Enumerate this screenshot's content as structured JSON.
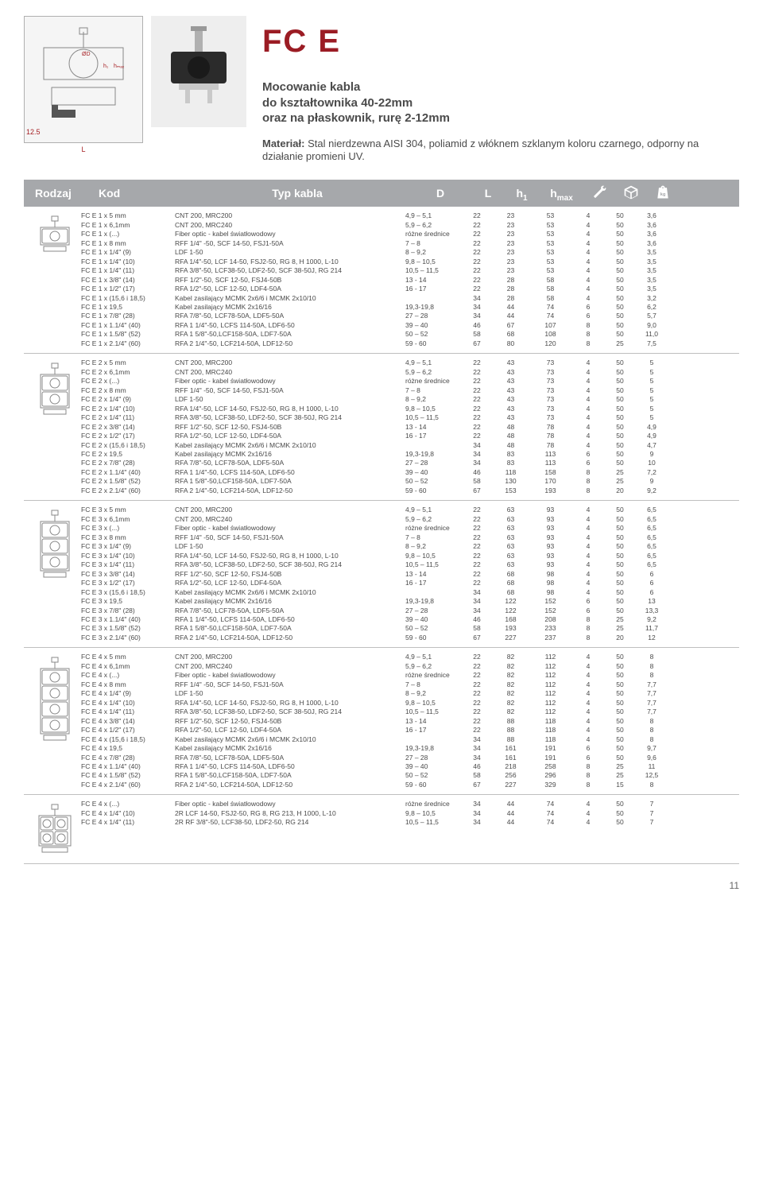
{
  "title": "FC E",
  "subtitle": "Mocowanie kabla\ndo kształtownika 40-22mm\noraz na płaskownik, rurę 2-12mm",
  "material_label": "Materiał:",
  "material_text": "Stal nierdzewna AISI 304, poliamid z włóknem szklanym koloru czarnego, odporny na działanie promieni UV.",
  "tech_dim": "12.5",
  "tech_L": "L",
  "headers": {
    "rodzaj": "Rodzaj",
    "kod": "Kod",
    "typ": "Typ kabla",
    "d": "D",
    "l": "L",
    "h1": "h",
    "h1sub": "1",
    "hmax": "h",
    "hmaxsub": "max"
  },
  "sections": [
    {
      "holes": 1,
      "rows": [
        [
          "FC E 1 x 5 mm",
          "CNT 200, MRC200",
          "4,9 – 5,1",
          "22",
          "23",
          "53",
          "4",
          "50",
          "3,6"
        ],
        [
          "FC E 1 x 6,1mm",
          "CNT 200, MRC240",
          "5,9 – 6,2",
          "22",
          "23",
          "53",
          "4",
          "50",
          "3,6"
        ],
        [
          "FC E 1 x (...)",
          "Fiber optic - kabel światłowodowy",
          "różne średnice",
          "22",
          "23",
          "53",
          "4",
          "50",
          "3,6"
        ],
        [
          "FC E 1 x 8 mm",
          "RFF 1/4\" -50, SCF 14-50, FSJ1-50A",
          "7 – 8",
          "22",
          "23",
          "53",
          "4",
          "50",
          "3,6"
        ],
        [
          "FC E 1 x 1/4\" (9)",
          "LDF 1-50",
          "8 – 9,2",
          "22",
          "23",
          "53",
          "4",
          "50",
          "3,5"
        ],
        [
          "FC E 1 x 1/4\" (10)",
          "RFA 1/4\"-50, LCF 14-50, FSJ2-50, RG 8, H 1000, L-10",
          "9,8 – 10,5",
          "22",
          "23",
          "53",
          "4",
          "50",
          "3,5"
        ],
        [
          "FC E 1 x 1/4\" (11)",
          "RFA 3/8\"-50, LCF38-50, LDF2-50, SCF 38-50J, RG 214",
          "10,5 – 11,5",
          "22",
          "23",
          "53",
          "4",
          "50",
          "3,5"
        ],
        [
          "FC E 1 x 3/8\" (14)",
          "RFF 1/2\"-50, SCF 12-50, FSJ4-50B",
          "13 - 14",
          "22",
          "28",
          "58",
          "4",
          "50",
          "3,5"
        ],
        [
          "FC E 1 x 1/2\" (17)",
          "RFA 1/2\"-50, LCF 12-50, LDF4-50A",
          "16 - 17",
          "22",
          "28",
          "58",
          "4",
          "50",
          "3,5"
        ],
        [
          "FC E 1 x (15,6 i 18,5)",
          "Kabel zasilający MCMK 2x6/6 i MCMK 2x10/10",
          "",
          "34",
          "28",
          "58",
          "4",
          "50",
          "3,2"
        ],
        [
          "FC E 1 x 19,5",
          "Kabel zasilający MCMK 2x16/16",
          "19,3-19,8",
          "34",
          "44",
          "74",
          "6",
          "50",
          "6,2"
        ],
        [
          "FC E 1 x 7/8\" (28)",
          "RFA 7/8\"-50, LCF78-50A, LDF5-50A",
          "27 – 28",
          "34",
          "44",
          "74",
          "6",
          "50",
          "5,7"
        ],
        [
          "FC E 1 x 1.1/4\" (40)",
          "RFA 1 1/4\"-50, LCFS 114-50A, LDF6-50",
          "39 – 40",
          "46",
          "67",
          "107",
          "8",
          "50",
          "9,0"
        ],
        [
          "FC E 1 x 1.5/8\" (52)",
          "RFA 1 5/8\"-50,LCF158-50A, LDF7-50A",
          "50 – 52",
          "58",
          "68",
          "108",
          "8",
          "50",
          "11,0"
        ],
        [
          "FC E 1 x 2.1/4\" (60)",
          "RFA 2 1/4\"-50, LCF214-50A, LDF12-50",
          "59 - 60",
          "67",
          "80",
          "120",
          "8",
          "25",
          "7,5"
        ]
      ]
    },
    {
      "holes": 2,
      "rows": [
        [
          "FC E 2 x 5 mm",
          "CNT 200, MRC200",
          "4,9 – 5,1",
          "22",
          "43",
          "73",
          "4",
          "50",
          "5"
        ],
        [
          "FC E 2 x 6,1mm",
          "CNT 200, MRC240",
          "5,9 – 6,2",
          "22",
          "43",
          "73",
          "4",
          "50",
          "5"
        ],
        [
          "FC E 2 x (...)",
          "Fiber optic - kabel światłowodowy",
          "różne średnice",
          "22",
          "43",
          "73",
          "4",
          "50",
          "5"
        ],
        [
          "FC E 2 x 8 mm",
          "RFF 1/4\" -50, SCF 14-50, FSJ1-50A",
          "7 – 8",
          "22",
          "43",
          "73",
          "4",
          "50",
          "5"
        ],
        [
          "FC E 2 x 1/4\" (9)",
          "LDF 1-50",
          "8 – 9,2",
          "22",
          "43",
          "73",
          "4",
          "50",
          "5"
        ],
        [
          "FC E 2 x 1/4\" (10)",
          "RFA 1/4\"-50, LCF 14-50, FSJ2-50, RG 8, H 1000, L-10",
          "9,8 – 10,5",
          "22",
          "43",
          "73",
          "4",
          "50",
          "5"
        ],
        [
          "FC E 2 x 1/4\" (11)",
          "RFA 3/8\"-50, LCF38-50, LDF2-50, SCF 38-50J, RG 214",
          "10,5 – 11,5",
          "22",
          "43",
          "73",
          "4",
          "50",
          "5"
        ],
        [
          "FC E 2 x 3/8\" (14)",
          "RFF 1/2\"-50, SCF 12-50, FSJ4-50B",
          "13 - 14",
          "22",
          "48",
          "78",
          "4",
          "50",
          "4,9"
        ],
        [
          "FC E 2 x 1/2\" (17)",
          "RFA 1/2\"-50, LCF 12-50, LDF4-50A",
          "16 - 17",
          "22",
          "48",
          "78",
          "4",
          "50",
          "4,9"
        ],
        [
          "FC E 2 x (15,6 i 18,5)",
          "Kabel zasilający MCMK 2x6/6 i MCMK 2x10/10",
          "",
          "34",
          "48",
          "78",
          "4",
          "50",
          "4,7"
        ],
        [
          "FC E 2 x 19,5",
          "Kabel zasilający MCMK 2x16/16",
          "19,3-19,8",
          "34",
          "83",
          "113",
          "6",
          "50",
          "9"
        ],
        [
          "FC E 2 x 7/8\" (28)",
          "RFA 7/8\"-50, LCF78-50A, LDF5-50A",
          "27 – 28",
          "34",
          "83",
          "113",
          "6",
          "50",
          "10"
        ],
        [
          "FC E 2 x 1.1/4\" (40)",
          "RFA 1 1/4\"-50, LCFS 114-50A, LDF6-50",
          "39 – 40",
          "46",
          "118",
          "158",
          "8",
          "25",
          "7,2"
        ],
        [
          "FC E 2 x 1.5/8\" (52)",
          "RFA 1 5/8\"-50,LCF158-50A, LDF7-50A",
          "50 – 52",
          "58",
          "130",
          "170",
          "8",
          "25",
          "9"
        ],
        [
          "FC E 2 x 2.1/4\" (60)",
          "RFA 2 1/4\"-50, LCF214-50A, LDF12-50",
          "59 - 60",
          "67",
          "153",
          "193",
          "8",
          "20",
          "9,2"
        ]
      ]
    },
    {
      "holes": 3,
      "rows": [
        [
          "FC E 3 x 5 mm",
          "CNT 200, MRC200",
          "4,9 – 5,1",
          "22",
          "63",
          "93",
          "4",
          "50",
          "6,5"
        ],
        [
          "FC E 3 x 6,1mm",
          "CNT 200, MRC240",
          "5,9 – 6,2",
          "22",
          "63",
          "93",
          "4",
          "50",
          "6,5"
        ],
        [
          "FC E 3 x (...)",
          "Fiber optic - kabel światłowodowy",
          "różne średnice",
          "22",
          "63",
          "93",
          "4",
          "50",
          "6,5"
        ],
        [
          "FC E 3 x 8 mm",
          "RFF 1/4\" -50, SCF 14-50, FSJ1-50A",
          "7 – 8",
          "22",
          "63",
          "93",
          "4",
          "50",
          "6,5"
        ],
        [
          "FC E 3 x 1/4\" (9)",
          "LDF 1-50",
          "8 – 9,2",
          "22",
          "63",
          "93",
          "4",
          "50",
          "6,5"
        ],
        [
          "FC E 3 x 1/4\" (10)",
          "RFA 1/4\"-50, LCF 14-50, FSJ2-50, RG 8, H 1000, L-10",
          "9,8 – 10,5",
          "22",
          "63",
          "93",
          "4",
          "50",
          "6,5"
        ],
        [
          "FC E 3 x 1/4\" (11)",
          "RFA 3/8\"-50, LCF38-50, LDF2-50, SCF 38-50J, RG 214",
          "10,5 – 11,5",
          "22",
          "63",
          "93",
          "4",
          "50",
          "6,5"
        ],
        [
          "FC E 3 x 3/8\" (14)",
          "RFF 1/2\"-50, SCF 12-50, FSJ4-50B",
          "13 - 14",
          "22",
          "68",
          "98",
          "4",
          "50",
          "6"
        ],
        [
          "FC E 3 x 1/2\" (17)",
          "RFA 1/2\"-50, LCF 12-50, LDF4-50A",
          "16 - 17",
          "22",
          "68",
          "98",
          "4",
          "50",
          "6"
        ],
        [
          "FC E 3 x (15,6 i 18,5)",
          "Kabel zasilający MCMK 2x6/6 i MCMK 2x10/10",
          "",
          "34",
          "68",
          "98",
          "4",
          "50",
          "6"
        ],
        [
          "FC E 3 x 19,5",
          "Kabel zasilający MCMK 2x16/16",
          "19,3-19,8",
          "34",
          "122",
          "152",
          "6",
          "50",
          "13"
        ],
        [
          "FC E 3 x 7/8\" (28)",
          "RFA  7/8\"-50, LCF78-50A, LDF5-50A",
          "27 – 28",
          "34",
          "122",
          "152",
          "6",
          "50",
          "13,3"
        ],
        [
          "FC E 3 x 1.1/4\" (40)",
          "RFA 1 1/4\"-50, LCFS 114-50A, LDF6-50",
          "39 – 40",
          "46",
          "168",
          "208",
          "8",
          "25",
          "9,2"
        ],
        [
          "FC E 3 x 1.5/8\" (52)",
          "RFA 1 5/8\"-50,LCF158-50A, LDF7-50A",
          "50 – 52",
          "58",
          "193",
          "233",
          "8",
          "25",
          "11,7"
        ],
        [
          "FC E 3 x 2.1/4\" (60)",
          "RFA 2 1/4\"-50, LCF214-50A, LDF12-50",
          "59 - 60",
          "67",
          "227",
          "237",
          "8",
          "20",
          "12"
        ]
      ]
    },
    {
      "holes": 4,
      "rows": [
        [
          "FC E 4 x 5 mm",
          "CNT 200, MRC200",
          "4,9 – 5,1",
          "22",
          "82",
          "112",
          "4",
          "50",
          "8"
        ],
        [
          "FC E 4 x 6,1mm",
          "CNT 200, MRC240",
          "5,9 – 6,2",
          "22",
          "82",
          "112",
          "4",
          "50",
          "8"
        ],
        [
          "FC E 4 x (...)",
          "Fiber optic - kabel światłowodowy",
          "różne średnice",
          "22",
          "82",
          "112",
          "4",
          "50",
          "8"
        ],
        [
          "FC E 4 x 8 mm",
          "RFF 1/4\" -50, SCF 14-50, FSJ1-50A",
          "7 – 8",
          "22",
          "82",
          "112",
          "4",
          "50",
          "7,7"
        ],
        [
          "FC E 4 x 1/4\" (9)",
          "LDF 1-50",
          "8 – 9,2",
          "22",
          "82",
          "112",
          "4",
          "50",
          "7,7"
        ],
        [
          "FC E 4 x 1/4\" (10)",
          "RFA 1/4\"-50, LCF 14-50, FSJ2-50, RG 8, H 1000, L-10",
          "9,8 – 10,5",
          "22",
          "82",
          "112",
          "4",
          "50",
          "7,7"
        ],
        [
          "FC E 4 x 1/4\" (11)",
          "RFA 3/8\"-50, LCF38-50, LDF2-50, SCF 38-50J, RG 214",
          "10,5 – 11,5",
          "22",
          "82",
          "112",
          "4",
          "50",
          "7,7"
        ],
        [
          "FC E 4 x 3/8\" (14)",
          "RFF 1/2\"-50, SCF 12-50, FSJ4-50B",
          "13 - 14",
          "22",
          "88",
          "118",
          "4",
          "50",
          "8"
        ],
        [
          "FC E 4 x 1/2\" (17)",
          "RFA 1/2\"-50, LCF 12-50, LDF4-50A",
          "16 - 17",
          "22",
          "88",
          "118",
          "4",
          "50",
          "8"
        ],
        [
          "FC E 4 x (15,6 i 18,5)",
          "Kabel zasilający MCMK 2x6/6 i MCMK 2x10/10",
          "",
          "34",
          "88",
          "118",
          "4",
          "50",
          "8"
        ],
        [
          "FC E 4 x 19,5",
          "Kabel zasilający MCMK 2x16/16",
          "19,3-19,8",
          "34",
          "161",
          "191",
          "6",
          "50",
          "9,7"
        ],
        [
          "FC E 4 x 7/8\" (28)",
          "RFA 7/8\"-50, LCF78-50A, LDF5-50A",
          "27 – 28",
          "34",
          "161",
          "191",
          "6",
          "50",
          "9,6"
        ],
        [
          "FC E 4 x 1.1/4\" (40)",
          "RFA 1 1/4\"-50, LCFS 114-50A, LDF6-50",
          "39 – 40",
          "46",
          "218",
          "258",
          "8",
          "25",
          "11"
        ],
        [
          "FC E 4 x 1.5/8\" (52)",
          "RFA 1 5/8\"-50,LCF158-50A, LDF7-50A",
          "50 – 52",
          "58",
          "256",
          "296",
          "8",
          "25",
          "12,5"
        ],
        [
          "FC E 4 x 2.1/4\" (60)",
          "RFA 2 1/4\"-50, LCF214-50A, LDF12-50",
          "59 - 60",
          "67",
          "227",
          "329",
          "8",
          "15",
          "8"
        ]
      ]
    },
    {
      "holes": 5,
      "rows": [
        [
          "FC E 4 x (...)",
          "Fiber optic - kabel światłowodowy",
          "różne średnice",
          "34",
          "44",
          "74",
          "4",
          "50",
          "7"
        ],
        [
          "FC E 4 x 1/4\" (10)",
          "2R LCF 14-50, FSJ2-50, RG 8, RG 213, H 1000, L-10",
          "9,8 – 10,5",
          "34",
          "44",
          "74",
          "4",
          "50",
          "7"
        ],
        [
          "FC E 4 x 1/4\" (11)",
          "2R RF 3/8\"-50, LCF38-50, LDF2-50, RG 214",
          "10,5 – 11,5",
          "34",
          "44",
          "74",
          "4",
          "50",
          "7"
        ]
      ]
    }
  ],
  "page_num": "11",
  "colors": {
    "brand_red": "#9b1c24",
    "header_bg": "#a6a8ab",
    "text": "#4a4a4a",
    "border": "#bfbfbf"
  }
}
